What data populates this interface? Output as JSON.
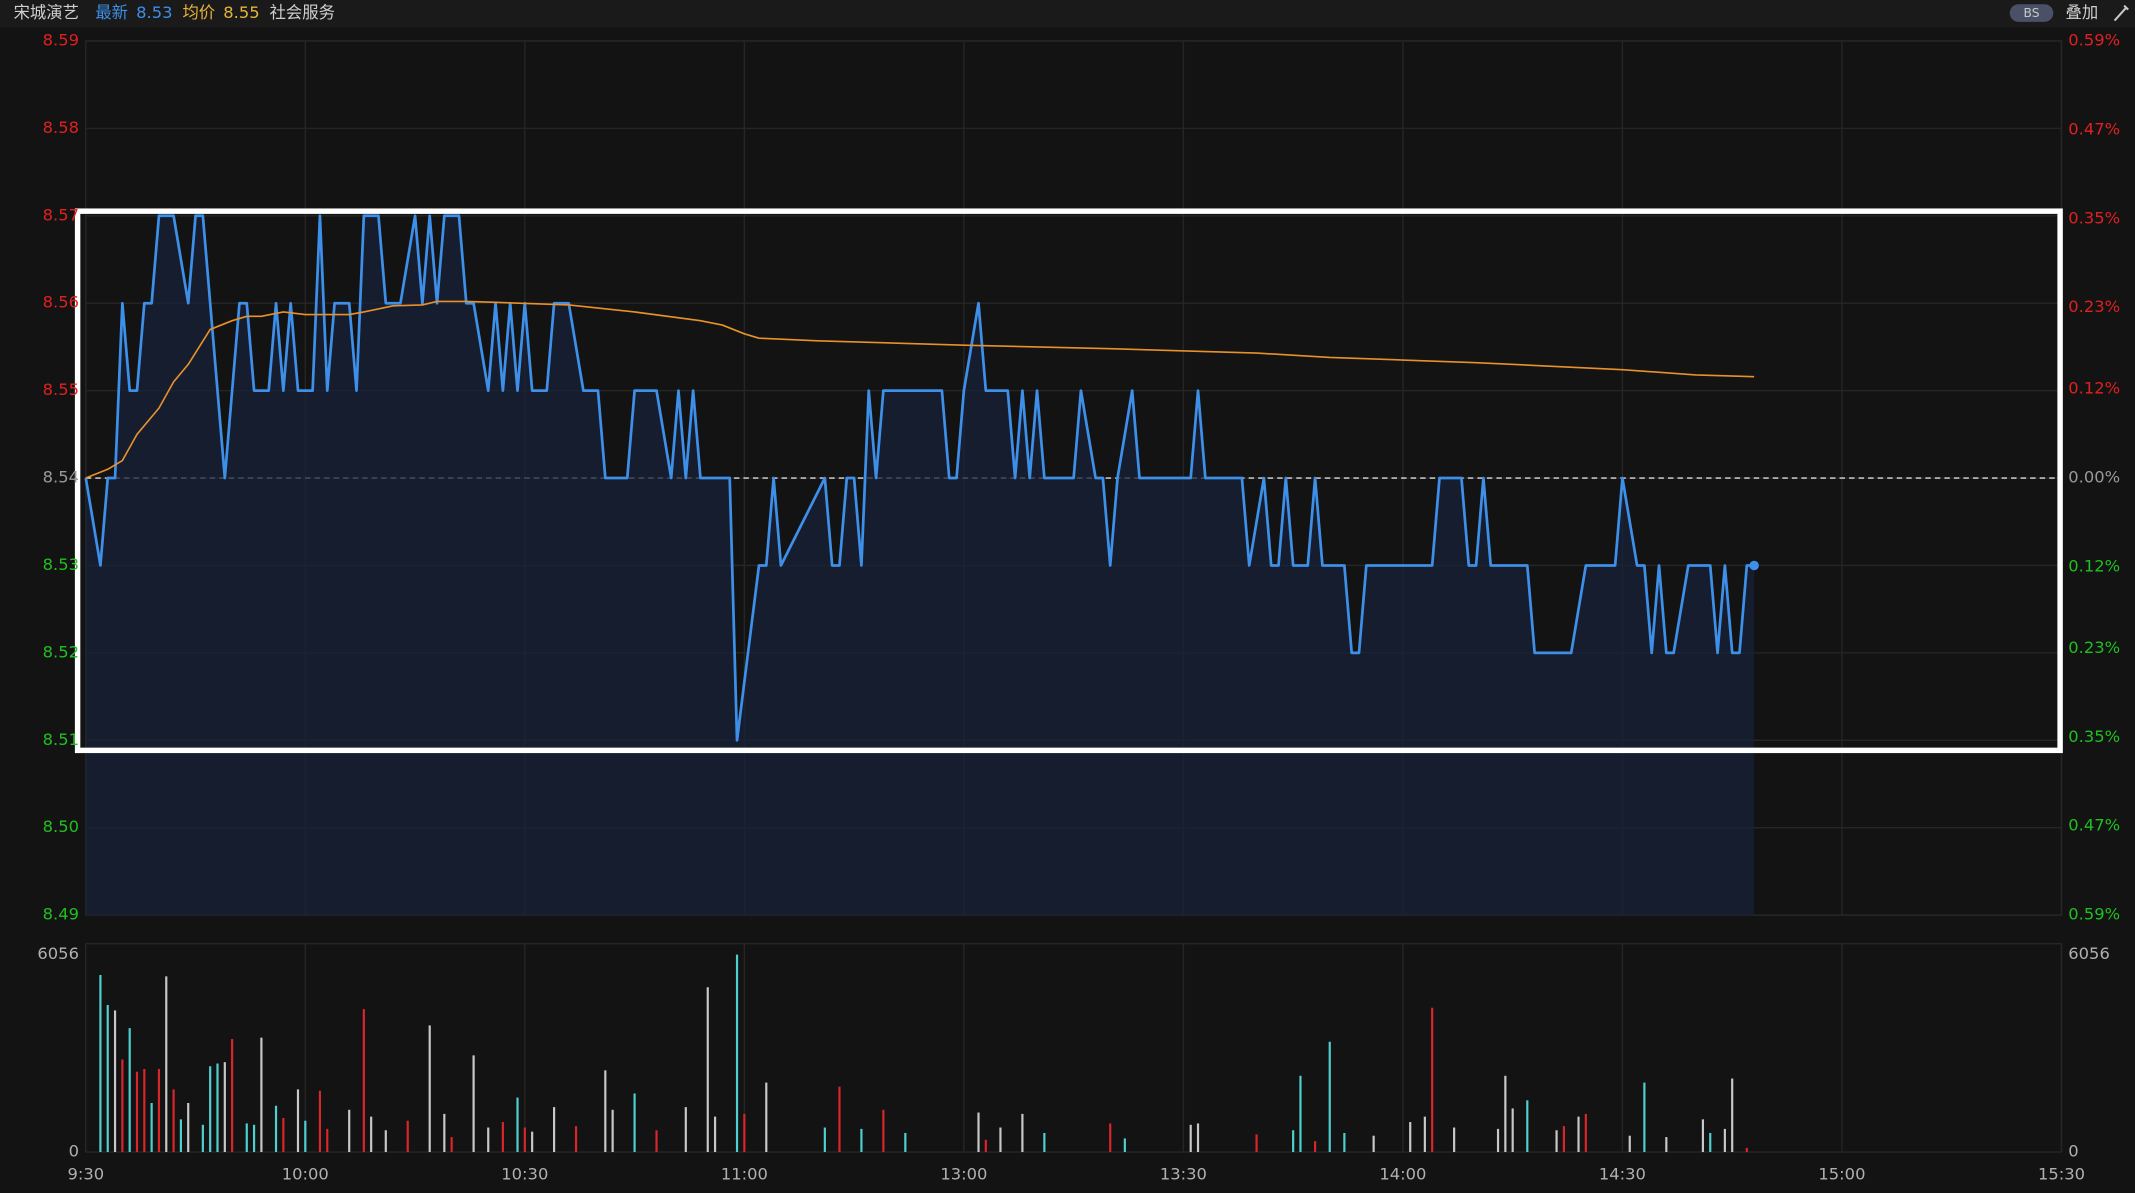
{
  "chart_data": {
    "type": "line",
    "header": {
      "name": "宋城演艺",
      "latest_label": "最新",
      "latest": 8.53,
      "avg_label": "均价",
      "avg": 8.55,
      "sector": "社会服务",
      "badge": "BS",
      "overlay": "叠加"
    },
    "xlim": [
      0,
      270
    ],
    "xticks": [
      {
        "value": 0,
        "label": "9:30"
      },
      {
        "value": 30,
        "label": "10:00"
      },
      {
        "value": 60,
        "label": "10:30"
      },
      {
        "value": 90,
        "label": "11:00"
      },
      {
        "value": 120,
        "label": "13:00"
      },
      {
        "value": 150,
        "label": "13:30"
      },
      {
        "value": 180,
        "label": "14:00"
      },
      {
        "value": 210,
        "label": "14:30"
      },
      {
        "value": 240,
        "label": "15:00"
      },
      {
        "value": 270,
        "label": "15:30"
      }
    ],
    "ylim": [
      8.49,
      8.59
    ],
    "yticks": [
      8.49,
      {
        "value": 8.5,
        "label": "8.50"
      },
      8.51,
      8.52,
      8.53,
      8.54,
      8.55,
      8.56,
      8.57,
      8.58,
      8.59
    ],
    "y2lim": [
      -0.59,
      0.59
    ],
    "y2ticks": [
      {
        "value": -0.59,
        "label": "0.59%"
      },
      {
        "value": -0.47,
        "label": "0.47%"
      },
      {
        "value": -0.35,
        "label": "0.35%"
      },
      {
        "value": -0.23,
        "label": "0.23%"
      },
      {
        "value": -0.12,
        "label": "0.12%"
      },
      {
        "value": 0,
        "label": "0.00%"
      },
      {
        "value": 0.12,
        "label": "0.12%"
      },
      {
        "value": 0.23,
        "label": "0.23%"
      },
      {
        "value": 0.35,
        "label": "0.35%"
      },
      {
        "value": 0.47,
        "label": "0.47%"
      },
      {
        "value": 0.59,
        "label": "0.59%"
      }
    ],
    "grid": true,
    "series": [
      {
        "color": "#3d8fe8",
        "x": [
          0,
          2,
          3,
          4,
          5,
          6,
          7,
          8,
          9,
          10,
          12,
          14,
          15,
          16,
          17,
          19,
          21,
          22,
          23,
          25,
          26,
          27,
          28,
          29,
          31,
          32,
          33,
          34,
          36,
          37,
          38,
          40,
          41,
          43,
          45,
          46,
          47,
          48,
          49,
          51,
          52,
          53,
          55,
          56,
          57,
          58,
          59,
          60,
          61,
          63,
          64,
          66,
          68,
          70,
          71,
          74,
          75,
          78,
          80,
          81,
          82,
          83,
          84,
          88,
          89,
          92,
          93,
          94,
          95,
          101,
          102,
          103,
          104,
          105,
          106,
          107,
          108,
          109,
          117,
          118,
          119,
          120,
          122,
          123,
          126,
          127,
          128,
          129,
          130,
          131,
          135,
          136,
          138,
          139,
          140,
          141,
          143,
          144,
          151,
          152,
          153,
          158,
          159,
          161,
          162,
          163,
          164,
          165,
          167,
          168,
          169,
          172,
          173,
          174,
          175,
          184,
          185,
          188,
          189,
          190,
          191,
          192,
          197,
          198,
          203,
          205,
          209,
          210,
          212,
          213,
          214,
          215,
          216,
          217,
          219,
          222,
          223,
          224,
          225,
          226,
          227,
          228
        ],
        "values": [
          8.54,
          8.53,
          8.54,
          8.54,
          8.56,
          8.55,
          8.55,
          8.56,
          8.56,
          8.57,
          8.57,
          8.56,
          8.57,
          8.57,
          8.56,
          8.54,
          8.56,
          8.56,
          8.55,
          8.55,
          8.56,
          8.55,
          8.56,
          8.55,
          8.55,
          8.57,
          8.55,
          8.56,
          8.56,
          8.55,
          8.57,
          8.57,
          8.56,
          8.56,
          8.57,
          8.56,
          8.57,
          8.56,
          8.57,
          8.57,
          8.56,
          8.56,
          8.55,
          8.56,
          8.55,
          8.56,
          8.55,
          8.56,
          8.55,
          8.55,
          8.56,
          8.56,
          8.55,
          8.55,
          8.54,
          8.54,
          8.55,
          8.55,
          8.54,
          8.55,
          8.54,
          8.55,
          8.54,
          8.54,
          8.51,
          8.53,
          8.53,
          8.54,
          8.53,
          8.54,
          8.53,
          8.53,
          8.54,
          8.54,
          8.53,
          8.55,
          8.54,
          8.55,
          8.55,
          8.54,
          8.54,
          8.55,
          8.56,
          8.55,
          8.55,
          8.54,
          8.55,
          8.54,
          8.55,
          8.54,
          8.54,
          8.55,
          8.54,
          8.54,
          8.53,
          8.54,
          8.55,
          8.54,
          8.54,
          8.55,
          8.54,
          8.54,
          8.53,
          8.54,
          8.53,
          8.53,
          8.54,
          8.53,
          8.53,
          8.54,
          8.53,
          8.53,
          8.52,
          8.52,
          8.53,
          8.53,
          8.54,
          8.54,
          8.53,
          8.53,
          8.54,
          8.53,
          8.53,
          8.52,
          8.52,
          8.53,
          8.53,
          8.54,
          8.53,
          8.53,
          8.52,
          8.53,
          8.52,
          8.52,
          8.53,
          8.53,
          8.52,
          8.53,
          8.52,
          8.52,
          8.53,
          8.53
        ]
      },
      {
        "color": "#e8912b",
        "x": [
          0,
          3,
          5,
          7,
          10,
          12,
          14,
          17,
          20,
          22,
          24,
          27,
          30,
          36,
          38,
          42,
          46,
          48,
          52,
          56,
          66,
          75,
          84,
          87,
          90,
          92,
          100,
          120,
          140,
          160,
          170,
          180,
          190,
          200,
          210,
          220,
          228
        ],
        "values": [
          8.54,
          8.541,
          8.542,
          8.545,
          8.548,
          8.551,
          8.553,
          8.557,
          8.558,
          8.5585,
          8.5585,
          8.559,
          8.5587,
          8.5587,
          8.559,
          8.5597,
          8.5598,
          8.5602,
          8.5602,
          8.5601,
          8.5598,
          8.559,
          8.558,
          8.5575,
          8.5565,
          8.556,
          8.5557,
          8.5552,
          8.5548,
          8.5543,
          8.5538,
          8.5535,
          8.5532,
          8.5528,
          8.5524,
          8.5518,
          8.5516
        ]
      }
    ],
    "volume": {
      "type": "bar",
      "ylim": [
        0,
        6056
      ],
      "yticks": [
        0,
        6056
      ],
      "x": [
        2,
        3,
        4,
        5,
        6,
        7,
        8,
        9,
        10,
        11,
        12,
        13,
        14,
        16,
        17,
        18,
        19,
        20,
        22,
        23,
        24,
        26,
        27,
        29,
        30,
        32,
        33,
        36,
        38,
        39,
        41,
        44,
        47,
        49,
        50,
        53,
        55,
        57,
        59,
        60,
        61,
        64,
        67,
        71,
        72,
        75,
        78,
        82,
        85,
        86,
        89,
        90,
        93,
        101,
        103,
        106,
        109,
        112,
        122,
        123,
        125,
        128,
        131,
        140,
        142,
        151,
        152,
        160,
        165,
        166,
        168,
        170,
        172,
        176,
        181,
        183,
        184,
        187,
        193,
        194,
        195,
        197,
        201,
        202,
        204,
        205,
        211,
        213,
        216,
        221,
        222,
        224,
        225,
        227
      ],
      "values": [
        5430,
        4511,
        4344,
        2840,
        3801,
        2464,
        2548,
        1504,
        2548,
        5388,
        1921,
        1002,
        1504,
        835,
        2631,
        2715,
        2757,
        3467,
        877,
        835,
        3508,
        1420,
        1044,
        1921,
        961,
        1880,
        710,
        1295,
        4386,
        1086,
        668,
        961,
        3884,
        1170,
        459,
        2965,
        752,
        919,
        1671,
        752,
        626,
        1378,
        794,
        2506,
        1295,
        1796,
        668,
        1378,
        5054,
        1086,
        6056,
        1170,
        2130,
        752,
        2005,
        710,
        1295,
        585,
        1211,
        376,
        752,
        1170,
        585,
        877,
        418,
        835,
        877,
        543,
        668,
        2339,
        334,
        3383,
        585,
        501,
        919,
        1086,
        4428,
        752,
        710,
        2339,
        1337,
        1587,
        668,
        794,
        1086,
        1170,
        501,
        2130,
        459,
        1002,
        585,
        710,
        2255,
        125
      ],
      "colors": [
        "#4fd0d0",
        "#4fd0d0",
        "#c8c8c8",
        "#d9262a",
        "#4fd0d0",
        "#d9262a",
        "#d9262a",
        "#4fd0d0",
        "#d9262a",
        "#c8c8c8",
        "#d9262a",
        "#4fd0d0",
        "#c8c8c8",
        "#4fd0d0",
        "#4fd0d0",
        "#4fd0d0",
        "#c8c8c8",
        "#d9262a",
        "#4fd0d0",
        "#4fd0d0",
        "#c8c8c8",
        "#4fd0d0",
        "#d9262a",
        "#c8c8c8",
        "#4fd0d0",
        "#d9262a",
        "#d9262a",
        "#c8c8c8",
        "#d9262a",
        "#c8c8c8",
        "#c8c8c8",
        "#d9262a",
        "#c8c8c8",
        "#c8c8c8",
        "#d9262a",
        "#c8c8c8",
        "#c8c8c8",
        "#d9262a",
        "#4fd0d0",
        "#d9262a",
        "#c8c8c8",
        "#c8c8c8",
        "#d9262a",
        "#c8c8c8",
        "#c8c8c8",
        "#4fd0d0",
        "#d9262a",
        "#c8c8c8",
        "#c8c8c8",
        "#c8c8c8",
        "#4fd0d0",
        "#d9262a",
        "#c8c8c8",
        "#4fd0d0",
        "#d9262a",
        "#4fd0d0",
        "#d9262a",
        "#4fd0d0",
        "#c8c8c8",
        "#d9262a",
        "#c8c8c8",
        "#c8c8c8",
        "#4fd0d0",
        "#d9262a",
        "#4fd0d0",
        "#c8c8c8",
        "#c8c8c8",
        "#d9262a",
        "#4fd0d0",
        "#4fd0d0",
        "#d9262a",
        "#4fd0d0",
        "#4fd0d0",
        "#c8c8c8",
        "#c8c8c8",
        "#c8c8c8",
        "#d9262a",
        "#c8c8c8",
        "#c8c8c8",
        "#c8c8c8",
        "#c8c8c8",
        "#4fd0d0",
        "#c8c8c8",
        "#d9262a",
        "#c8c8c8",
        "#d9262a",
        "#c8c8c8",
        "#4fd0d0",
        "#c8c8c8",
        "#c8c8c8",
        "#4fd0d0",
        "#c8c8c8",
        "#c8c8c8",
        "#d9262a"
      ]
    }
  }
}
